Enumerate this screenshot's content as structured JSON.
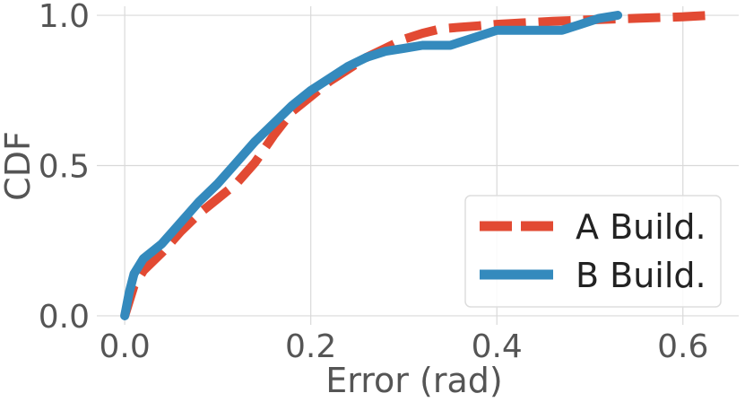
{
  "chart_data": {
    "type": "line",
    "title": "",
    "xlabel": "Error (rad)",
    "ylabel": "CDF",
    "xlim": [
      -0.03,
      0.66
    ],
    "ylim": [
      -0.03,
      1.03
    ],
    "xticks": [
      0.0,
      0.2,
      0.4,
      0.6
    ],
    "xtick_labels": [
      "0.0",
      "0.2",
      "0.4",
      "0.6"
    ],
    "yticks": [
      0.0,
      0.5,
      1.0
    ],
    "ytick_labels": [
      "0.0",
      "0.5",
      "1.0"
    ],
    "grid": true,
    "legend_position": "bottom-right",
    "series": [
      {
        "name": "A Build.",
        "color": "#E24A33",
        "style": "dashed",
        "x": [
          0.0,
          0.01,
          0.02,
          0.04,
          0.06,
          0.08,
          0.1,
          0.12,
          0.14,
          0.16,
          0.18,
          0.2,
          0.22,
          0.24,
          0.26,
          0.28,
          0.3,
          0.32,
          0.34,
          0.36,
          0.38,
          0.4,
          0.43,
          0.46,
          0.5,
          0.55,
          0.6,
          0.63
        ],
        "y": [
          0.0,
          0.1,
          0.15,
          0.21,
          0.28,
          0.34,
          0.39,
          0.44,
          0.51,
          0.6,
          0.68,
          0.73,
          0.78,
          0.82,
          0.86,
          0.89,
          0.92,
          0.94,
          0.955,
          0.96,
          0.965,
          0.97,
          0.975,
          0.98,
          0.985,
          0.99,
          0.995,
          1.0
        ]
      },
      {
        "name": "B Build.",
        "color": "#348ABD",
        "style": "solid",
        "x": [
          0.0,
          0.005,
          0.01,
          0.02,
          0.04,
          0.06,
          0.08,
          0.1,
          0.12,
          0.14,
          0.16,
          0.18,
          0.2,
          0.22,
          0.24,
          0.26,
          0.28,
          0.3,
          0.32,
          0.35,
          0.38,
          0.4,
          0.44,
          0.47,
          0.49,
          0.51,
          0.53
        ],
        "y": [
          0.0,
          0.08,
          0.14,
          0.19,
          0.24,
          0.31,
          0.38,
          0.44,
          0.51,
          0.58,
          0.64,
          0.7,
          0.75,
          0.79,
          0.83,
          0.86,
          0.88,
          0.89,
          0.9,
          0.9,
          0.93,
          0.95,
          0.95,
          0.95,
          0.97,
          0.99,
          1.0
        ]
      }
    ]
  }
}
